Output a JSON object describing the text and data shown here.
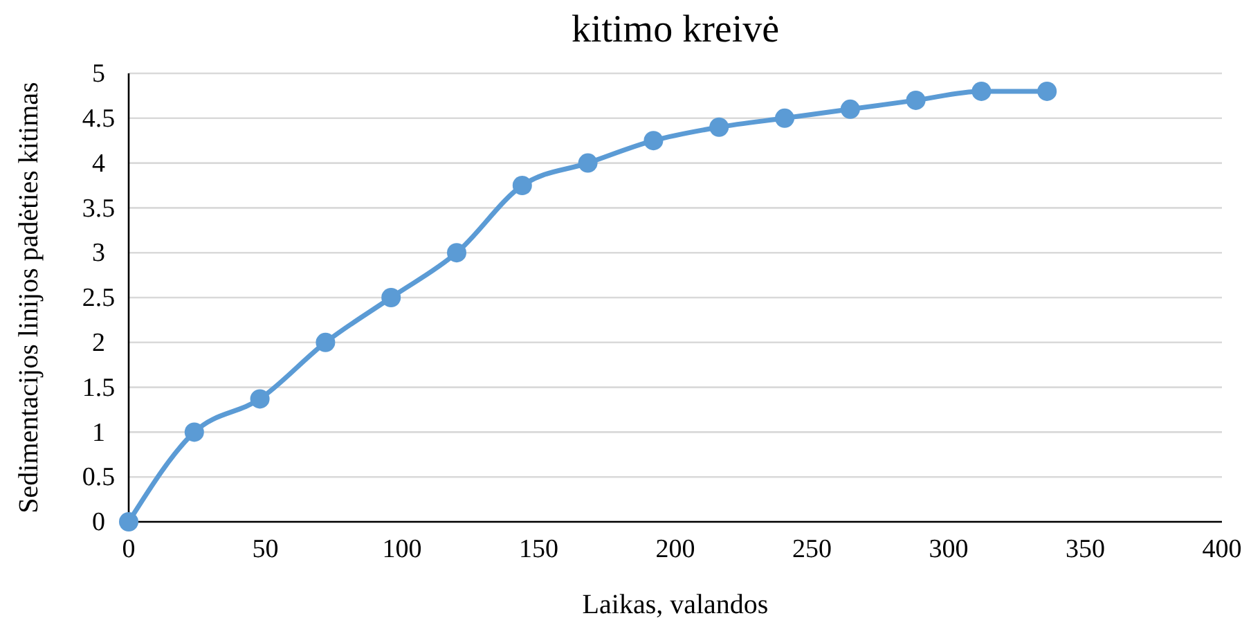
{
  "chart_data": {
    "type": "line",
    "title": "kitimo kreivė",
    "xlabel": "Laikas, valandos",
    "ylabel": "Sedimentacijos linijos padėties kitimas",
    "x": [
      0,
      24,
      48,
      72,
      96,
      120,
      144,
      168,
      192,
      216,
      240,
      264,
      288,
      312,
      336
    ],
    "series": [
      {
        "color": "#5b9bd5",
        "values": [
          0,
          1,
          1.37,
          2,
          2.5,
          3,
          3.75,
          4,
          4.25,
          4.4,
          4.5,
          4.6,
          4.7,
          4.8,
          4.8
        ]
      }
    ],
    "xlim": [
      0,
      400
    ],
    "xticks": [
      0,
      50,
      100,
      150,
      200,
      250,
      300,
      350,
      400
    ],
    "ylim": [
      0,
      5
    ],
    "yticks": [
      0,
      0.5,
      1,
      1.5,
      2,
      2.5,
      3,
      3.5,
      4,
      4.5,
      5
    ],
    "grid": "y",
    "marker": "circle",
    "line_style": "solid"
  }
}
